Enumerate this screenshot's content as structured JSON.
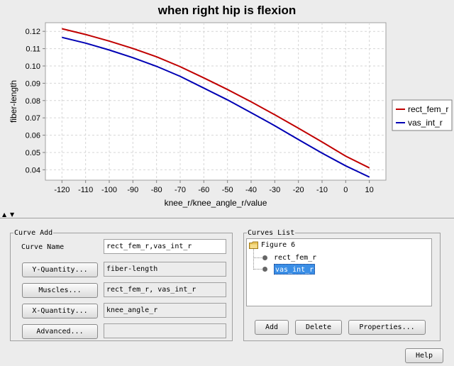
{
  "window": {
    "help_label": "Help"
  },
  "chart_data": {
    "type": "line",
    "title": "when right hip is flexion",
    "xlabel": "knee_r/knee_angle_r/value",
    "ylabel": "fiber-length",
    "xlim": [
      -127,
      17
    ],
    "ylim": [
      0.034,
      0.125
    ],
    "x_ticks": [
      -120,
      -110,
      -100,
      -90,
      -80,
      -70,
      -60,
      -50,
      -40,
      -30,
      -20,
      -10,
      0,
      10
    ],
    "y_ticks": [
      0.04,
      0.05,
      0.06,
      0.07,
      0.08,
      0.09,
      0.1,
      0.11,
      0.12
    ],
    "grid": true,
    "legend_position": "right",
    "x": [
      -120,
      -110,
      -100,
      -90,
      -80,
      -70,
      -60,
      -50,
      -40,
      -30,
      -20,
      -10,
      0,
      10
    ],
    "series": [
      {
        "name": "rect_fem_r",
        "color": "#c00000",
        "values": [
          0.1215,
          0.1182,
          0.1144,
          0.1101,
          0.1053,
          0.0996,
          0.0931,
          0.0864,
          0.0793,
          0.0718,
          0.064,
          0.0561,
          0.0479,
          0.0411
        ]
      },
      {
        "name": "vas_int_r",
        "color": "#0000b4",
        "values": [
          0.1165,
          0.1132,
          0.1092,
          0.1048,
          0.0998,
          0.094,
          0.0872,
          0.0804,
          0.073,
          0.0655,
          0.0575,
          0.0496,
          0.0423,
          0.0358
        ]
      }
    ]
  },
  "curve_add": {
    "title": "Curve Add",
    "curve_name_label": "Curve Name",
    "curve_name_value": "rect_fem_r,vas_int_r",
    "y_quantity_button": "Y-Quantity...",
    "y_quantity_value": "fiber-length",
    "muscles_button": "Muscles...",
    "muscles_value": "rect_fem_r, vas_int_r",
    "x_quantity_button": "X-Quantity...",
    "x_quantity_value": "knee_angle_r",
    "advanced_button": "Advanced...",
    "advanced_value": ""
  },
  "curves_list": {
    "title": "Curves List",
    "root": "Figure 6",
    "items": [
      "rect_fem_r",
      "vas_int_r"
    ],
    "selected": "vas_int_r",
    "add_button": "Add",
    "delete_button": "Delete",
    "properties_button": "Properties..."
  }
}
